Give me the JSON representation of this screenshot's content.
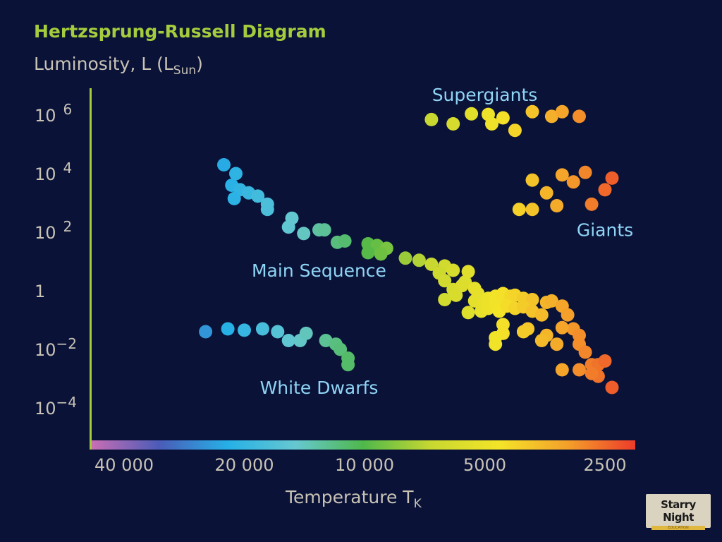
{
  "chart_data": {
    "type": "scatter",
    "title": "Hertzsprung-Russell Diagram",
    "ylabel": {
      "base": "Luminosity, L (L",
      "sub": "Sun",
      "close": ")"
    },
    "xlabel": {
      "base": "Temperature T",
      "sub": "K"
    },
    "y_scale": "log",
    "y_ticks": [
      {
        "base": "10",
        "exp": "6",
        "value": 1000000
      },
      {
        "base": "10",
        "exp": "4",
        "value": 10000
      },
      {
        "base": "10",
        "exp": "2",
        "value": 100
      },
      {
        "base": "1",
        "exp": "",
        "value": 1
      },
      {
        "base": "10",
        "exp": "−2",
        "value": 0.01
      },
      {
        "base": "10",
        "exp": "−4",
        "value": 0.0001
      }
    ],
    "x_scale": "log-reversed",
    "x_ticks": [
      {
        "label": "40 000",
        "value": 40000
      },
      {
        "label": "20 000",
        "value": 20000
      },
      {
        "label": "10 000",
        "value": 10000
      },
      {
        "label": "5000",
        "value": 5000
      },
      {
        "label": "2500",
        "value": 2500
      }
    ],
    "annotations": [
      {
        "text": "Supergiants",
        "near_T": 5000,
        "near_L": 5000000
      },
      {
        "text": "Giants",
        "near_T": 2500,
        "near_L": 120
      },
      {
        "text": "Main Sequence",
        "near_T": 13000,
        "near_L": 5
      },
      {
        "text": "White Dwarfs",
        "near_T": 13000,
        "near_L": 0.0005
      }
    ],
    "series": [
      {
        "name": "Supergiants",
        "points": [
          [
            6800,
            700000
          ],
          [
            6000,
            500000
          ],
          [
            5400,
            1100000
          ],
          [
            4900,
            1050000
          ],
          [
            4800,
            500000
          ],
          [
            4500,
            800000
          ],
          [
            4200,
            300000
          ],
          [
            3800,
            1300000
          ],
          [
            3400,
            900000
          ],
          [
            3200,
            1300000
          ],
          [
            2900,
            900000
          ]
        ]
      },
      {
        "name": "Giants",
        "points": [
          [
            3800,
            6000
          ],
          [
            4100,
            600
          ],
          [
            3800,
            600
          ],
          [
            3500,
            2200
          ],
          [
            3300,
            800
          ],
          [
            3200,
            9000
          ],
          [
            3000,
            5200
          ],
          [
            2800,
            11000
          ],
          [
            2700,
            900
          ],
          [
            2500,
            2800
          ],
          [
            2400,
            7000
          ]
        ]
      },
      {
        "name": "Main Sequence",
        "points": [
          [
            21000,
            10000
          ],
          [
            22500,
            20000
          ],
          [
            21500,
            4000
          ],
          [
            20500,
            2800
          ],
          [
            21200,
            1400
          ],
          [
            19500,
            2200
          ],
          [
            18500,
            1700
          ],
          [
            17500,
            900
          ],
          [
            17500,
            600
          ],
          [
            15500,
            150
          ],
          [
            15200,
            300
          ],
          [
            13000,
            120
          ],
          [
            14200,
            90
          ],
          [
            12600,
            120
          ],
          [
            11700,
            45
          ],
          [
            11200,
            50
          ],
          [
            9800,
            40
          ],
          [
            9300,
            35
          ],
          [
            8800,
            28
          ],
          [
            9800,
            20
          ],
          [
            9100,
            18
          ],
          [
            7900,
            13
          ],
          [
            7300,
            11
          ],
          [
            6800,
            8
          ],
          [
            6300,
            7
          ],
          [
            6500,
            4
          ],
          [
            6300,
            2.2
          ],
          [
            6000,
            5
          ],
          [
            5600,
            2
          ],
          [
            5500,
            4.5
          ],
          [
            6000,
            1.1
          ],
          [
            5700,
            1.5
          ],
          [
            5300,
            1.2
          ],
          [
            5200,
            0.8
          ],
          [
            6300,
            0.5
          ],
          [
            5900,
            0.7
          ],
          [
            5300,
            0.45
          ],
          [
            5000,
            0.4
          ],
          [
            4900,
            0.55
          ],
          [
            4700,
            0.65
          ],
          [
            4500,
            0.8
          ],
          [
            4500,
            0.55
          ],
          [
            4300,
            0.65
          ],
          [
            4200,
            0.7
          ],
          [
            4000,
            0.55
          ],
          [
            3800,
            0.5
          ],
          [
            3500,
            0.4
          ],
          [
            3400,
            0.45
          ],
          [
            3200,
            0.3
          ],
          [
            5100,
            0.2
          ],
          [
            5500,
            0.18
          ],
          [
            4900,
            0.25
          ],
          [
            4700,
            0.3
          ],
          [
            4600,
            0.2
          ],
          [
            4400,
            0.3
          ],
          [
            4200,
            0.25
          ],
          [
            4000,
            0.28
          ],
          [
            3800,
            0.2
          ],
          [
            3600,
            0.15
          ],
          [
            3100,
            0.15
          ],
          [
            3000,
            0.05
          ],
          [
            3200,
            0.055
          ],
          [
            3500,
            0.03
          ],
          [
            3300,
            0.015
          ],
          [
            3900,
            0.05
          ],
          [
            3600,
            0.02
          ],
          [
            4500,
            0.07
          ],
          [
            4000,
            0.04
          ],
          [
            4700,
            0.015
          ],
          [
            2900,
            0.03
          ],
          [
            2900,
            0.015
          ],
          [
            2800,
            0.008
          ],
          [
            2700,
            0.003
          ],
          [
            2600,
            0.003
          ],
          [
            2500,
            0.004
          ],
          [
            2400,
            0.0005
          ],
          [
            2600,
            0.0012
          ],
          [
            2700,
            0.0015
          ],
          [
            2900,
            0.002
          ],
          [
            3200,
            0.002
          ],
          [
            4500,
            0.035
          ],
          [
            4700,
            0.025
          ]
        ]
      },
      {
        "name": "White Dwarfs",
        "points": [
          [
            25000,
            0.04
          ],
          [
            22000,
            0.05
          ],
          [
            20000,
            0.045
          ],
          [
            18000,
            0.05
          ],
          [
            16500,
            0.04
          ],
          [
            15500,
            0.02
          ],
          [
            14500,
            0.02
          ],
          [
            14000,
            0.035
          ],
          [
            12500,
            0.02
          ],
          [
            11800,
            0.015
          ],
          [
            11500,
            0.01
          ],
          [
            11000,
            0.005
          ],
          [
            11000,
            0.003
          ]
        ]
      }
    ],
    "colorbar": [
      "#c86eb4",
      "#4a5cb8",
      "#26b0e6",
      "#66c8d0",
      "#4fb84a",
      "#c8d830",
      "#f4e428",
      "#f4a02a",
      "#ec3c2a"
    ],
    "grid": false,
    "legend": "none"
  },
  "logo": {
    "line1": "Starry Night",
    "line2": "EDUCATION"
  }
}
